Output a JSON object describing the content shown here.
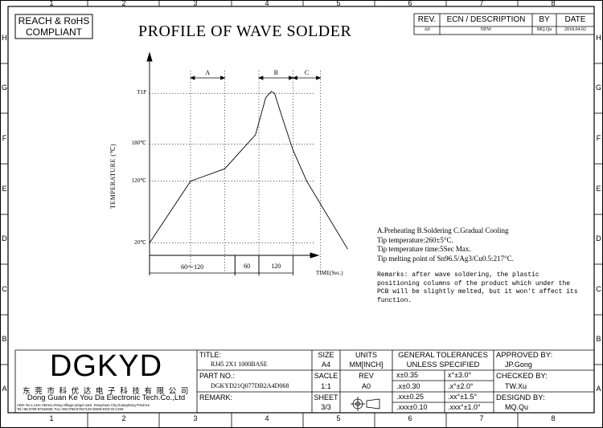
{
  "grid": {
    "columns": [
      "1",
      "2",
      "3",
      "4",
      "5",
      "6",
      "7",
      "8"
    ],
    "rows": [
      "H",
      "G",
      "F",
      "E",
      "D",
      "C",
      "B",
      "A"
    ]
  },
  "compliance": {
    "line1": "REACH & RoHS",
    "line2": "COMPLIANT"
  },
  "page_title": "PROFILE OF WAVE SOLDER",
  "revision_table": {
    "headers": [
      "REV.",
      "ECN / DESCRIPTION",
      "BY",
      "DATE"
    ],
    "rows": [
      [
        "A0",
        "NEW",
        "MQ.Qu",
        "2018.04.02"
      ]
    ]
  },
  "chart_data": {
    "type": "line",
    "title": "",
    "xlabel": "TIME(Sec.)",
    "ylabel": "TEMPERATURE (℃)",
    "y_ticks": [
      "20℃",
      "120℃",
      "180℃",
      "T1P"
    ],
    "grid": true,
    "zones": [
      "A",
      "B",
      "C"
    ],
    "time_segments": [
      "60～120",
      "60",
      "120"
    ],
    "series": [
      {
        "points": [
          [
            0,
            20
          ],
          [
            60,
            120
          ],
          [
            110,
            140
          ],
          [
            155,
            195
          ],
          [
            170,
            255
          ],
          [
            178,
            265
          ],
          [
            183,
            262
          ],
          [
            195,
            220
          ],
          [
            210,
            170
          ],
          [
            230,
            120
          ],
          [
            290,
            10
          ]
        ]
      }
    ]
  },
  "notes": {
    "lines": [
      "A.Preheating B.Soldering C.Gradual Cooling",
      "Tip temperature:260±5°C.",
      "Tip temperature time:5Sec Max.",
      "Tip melting point of Sn96.5/Ag3/Cu0.5:217°C."
    ],
    "remarks": [
      "Remarks: after wave soldering, the plastic",
      "positioning columns of the product  which under the",
      "PCB will be slightly melted, but it won't affect its",
      "function."
    ]
  },
  "title_block": {
    "logo": "DGKYD",
    "company_cn": "东 莞 市 科 优 达 电 子 科 技 有 限 公 司",
    "company_en": "Dong Guan Ke You Da Electronic Tech.Co.,Ltd",
    "address_line": "ADD: No.1 LiHe Street,LiHeng Village,Qingxi town, DongGuan City,GuangDong Province",
    "contact_line": "Tel:+86-0769-87334600; Fax:+86-0769-87647129  WWW.DGKYD.COM",
    "title_label": "TITLE:",
    "title_value": "RJ45 2X1 1000BASE",
    "part_label": "PART NO.:",
    "part_value": "DGKYD21Q077DB2A4D068",
    "remark_label": "REMARK:",
    "size_label": "SIZE",
    "size_value": "A4",
    "units_label": "UNITS",
    "units_value": "MM[INCH]",
    "scale_label": "SACLE",
    "scale_value": "1:1",
    "rev_label": "REV",
    "rev_value": "A0",
    "sheet_label": "SHEET",
    "sheet_value": "3/3",
    "tolerance_header": [
      "GENERAL TOLERANCES",
      "UNLESS SPECIFIED"
    ],
    "tolerances": [
      [
        "x±0.35",
        "x°±3.0°"
      ],
      [
        ".x±0.30",
        ".x°±2.0°"
      ],
      [
        ".xx±0.25",
        ".xx°±1.5°"
      ],
      [
        ".xxx±0.10",
        ".xxx°±1.0°"
      ]
    ],
    "approved_label": "APPROVED BY:",
    "approved_value": "JP.Gong",
    "checked_label": "CHECKED BY:",
    "checked_value": "TW.Xu",
    "designed_label": "DESIGND BY:",
    "designed_value": "MQ.Qu"
  }
}
